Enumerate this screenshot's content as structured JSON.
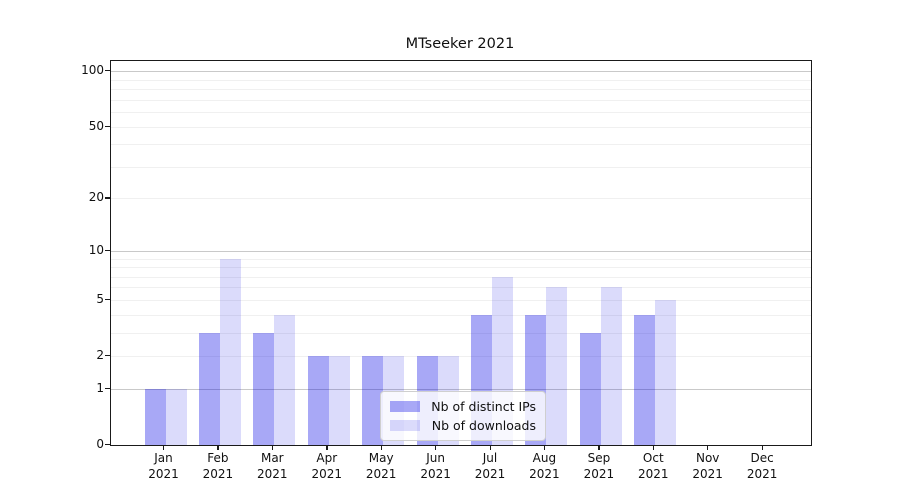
{
  "chart_data": {
    "type": "bar",
    "title": "MTseeker 2021",
    "categories": [
      "Jan 2021",
      "Feb 2021",
      "Mar 2021",
      "Apr 2021",
      "May 2021",
      "Jun 2021",
      "Jul 2021",
      "Aug 2021",
      "Sep 2021",
      "Oct 2021",
      "Nov 2021",
      "Dec 2021"
    ],
    "series": [
      {
        "name": "Nb of distinct IPs",
        "values": [
          1,
          3,
          3,
          2,
          2,
          2,
          4,
          4,
          3,
          4,
          0,
          0
        ],
        "color": "rgba(0,0,230,0.34)",
        "apparent_hex": "#a8a8f8"
      },
      {
        "name": "Nb of downloads",
        "values": [
          1,
          9,
          4,
          2,
          2,
          2,
          7,
          6,
          6,
          5,
          0,
          0
        ],
        "color": "rgba(0,0,230,0.14)",
        "apparent_hex": "#dbdbfa"
      }
    ],
    "xlabel": "",
    "ylabel": "",
    "yscale": "log1p",
    "ylim": [
      0,
      114
    ],
    "yticks": [
      0,
      1,
      2,
      5,
      10,
      20,
      50,
      100
    ],
    "major_gridlines": [
      1,
      10,
      100
    ],
    "minor_gridlines": [
      2,
      3,
      4,
      5,
      6,
      7,
      8,
      9,
      20,
      30,
      40,
      50,
      60,
      70,
      80,
      90
    ],
    "grid": "horizontal",
    "legend_position": "lower center"
  },
  "colors": {
    "major_grid": "#c9c9c9",
    "minor_grid": "#f0f0f0",
    "spine": "#1a1a1a",
    "background": "#ffffff"
  }
}
